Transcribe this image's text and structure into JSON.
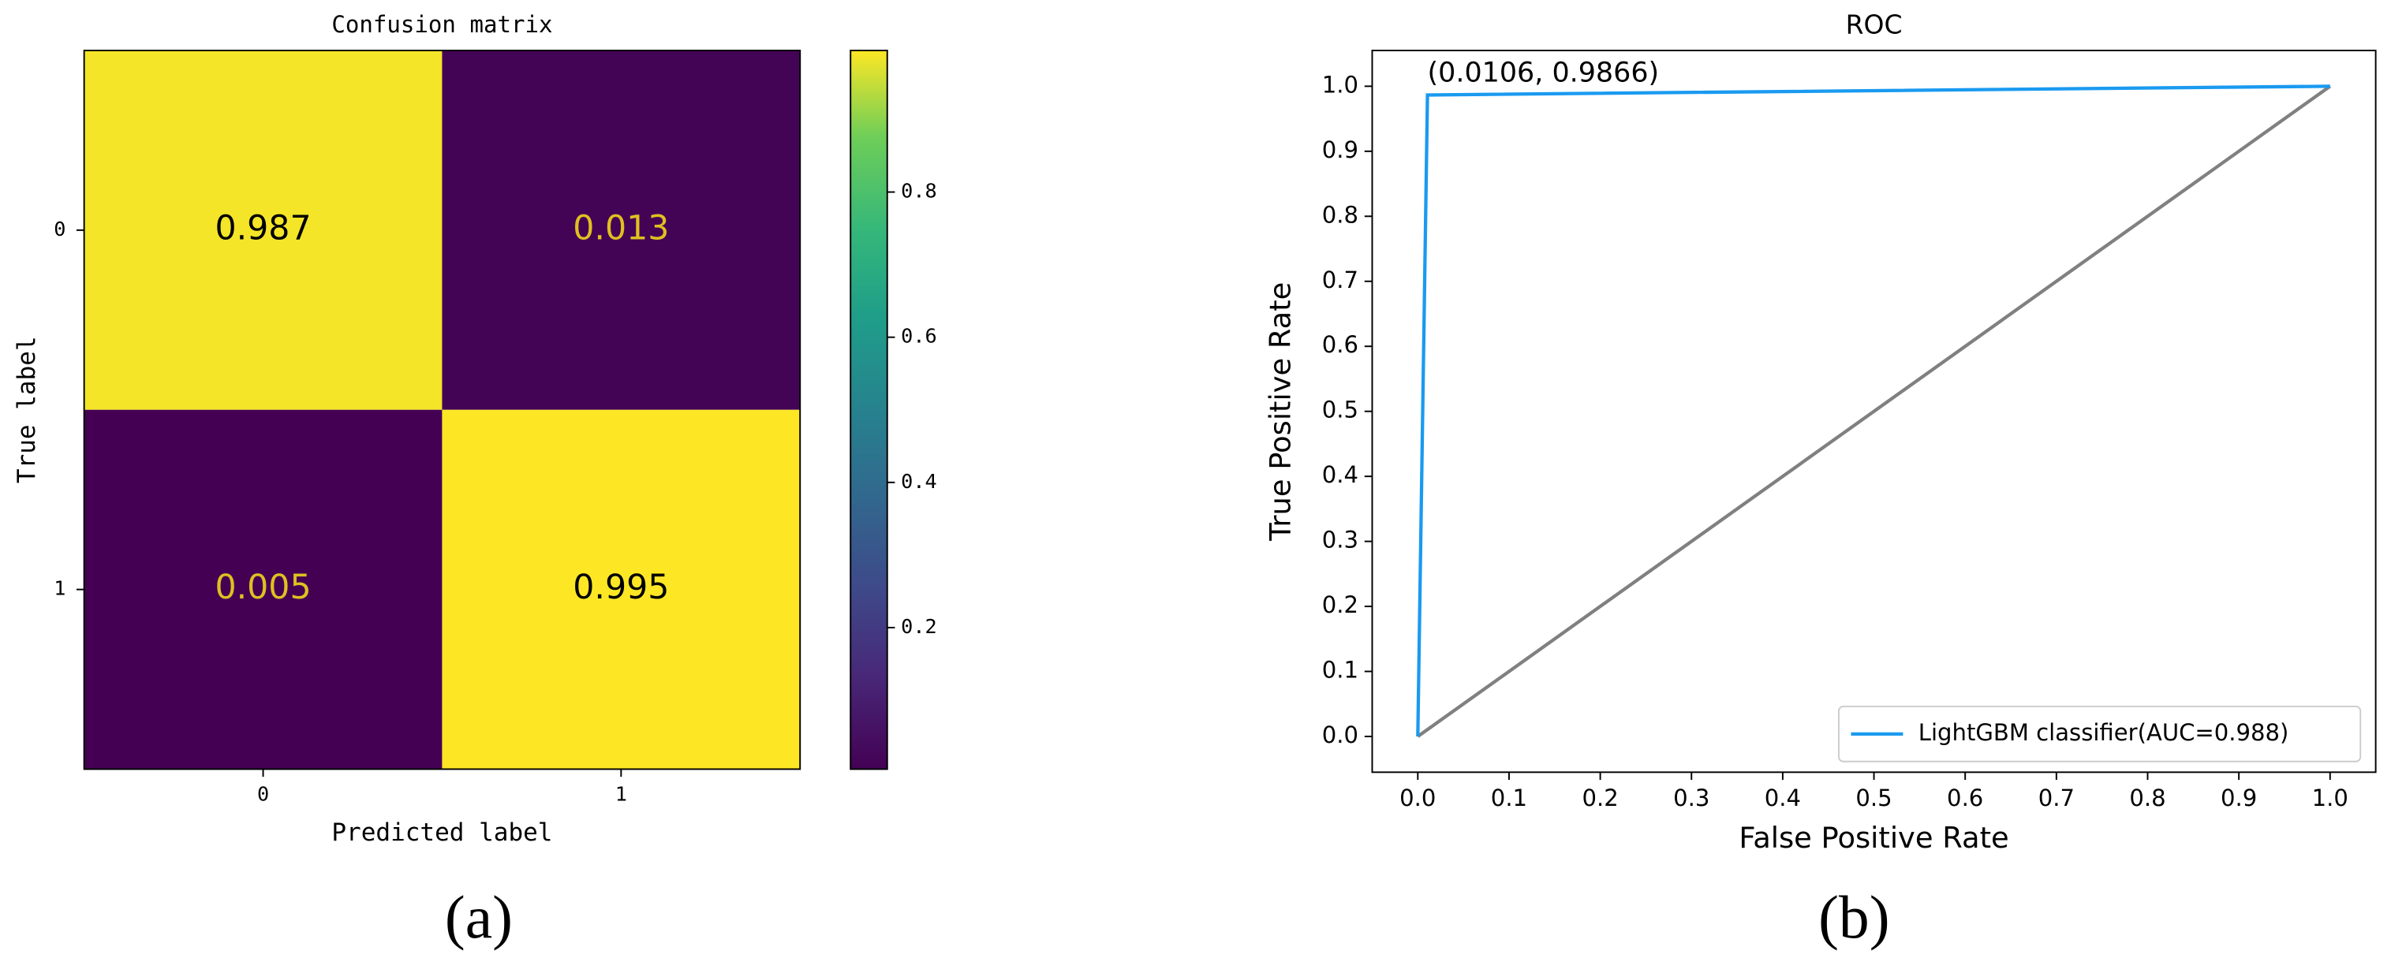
{
  "chart_data": [
    {
      "type": "heatmap",
      "title": "Confusion matrix",
      "x_label": "Predicted label",
      "y_label": "True label",
      "x_categories": [
        "0",
        "1"
      ],
      "y_categories": [
        "0",
        "1"
      ],
      "values": [
        [
          0.987,
          0.013
        ],
        [
          0.005,
          0.995
        ]
      ],
      "colormap": "viridis",
      "clim": [
        0.005,
        0.995
      ],
      "cticks": [
        0.2,
        0.4,
        0.6,
        0.8
      ]
    },
    {
      "type": "line",
      "title": "ROC",
      "x_label": "False Positive Rate",
      "y_label": "True Positive Rate",
      "xlim": [
        -0.05,
        1.05
      ],
      "ylim": [
        -0.055,
        1.055
      ],
      "xticks": [
        {
          "value": 0,
          "label": "0.0"
        },
        0.1,
        0.2,
        0.3,
        0.4,
        0.5,
        0.6,
        0.7,
        0.8,
        0.9,
        {
          "value": 1,
          "label": "1.0"
        }
      ],
      "yticks": [
        {
          "value": 0,
          "label": "0.0"
        },
        0.1,
        0.2,
        0.3,
        0.4,
        0.5,
        0.6,
        0.7,
        0.8,
        0.9,
        {
          "value": 1,
          "label": "1.0"
        }
      ],
      "series": [
        {
          "name": "LightGBM classifier(AUC=0.988)",
          "color": "#1a9af0",
          "x": [
            0,
            0.0106,
            1
          ],
          "values": [
            0,
            0.9866,
            1
          ]
        },
        {
          "color": "#808080",
          "x": [
            0,
            1
          ],
          "values": [
            0,
            1
          ]
        }
      ],
      "annotations": [
        {
          "text": "(0.0106, 0.9866)",
          "x": 0.0106,
          "y": 0.9866
        }
      ],
      "legend": "lower right"
    }
  ],
  "captions": [
    "(a)",
    "(b)"
  ]
}
